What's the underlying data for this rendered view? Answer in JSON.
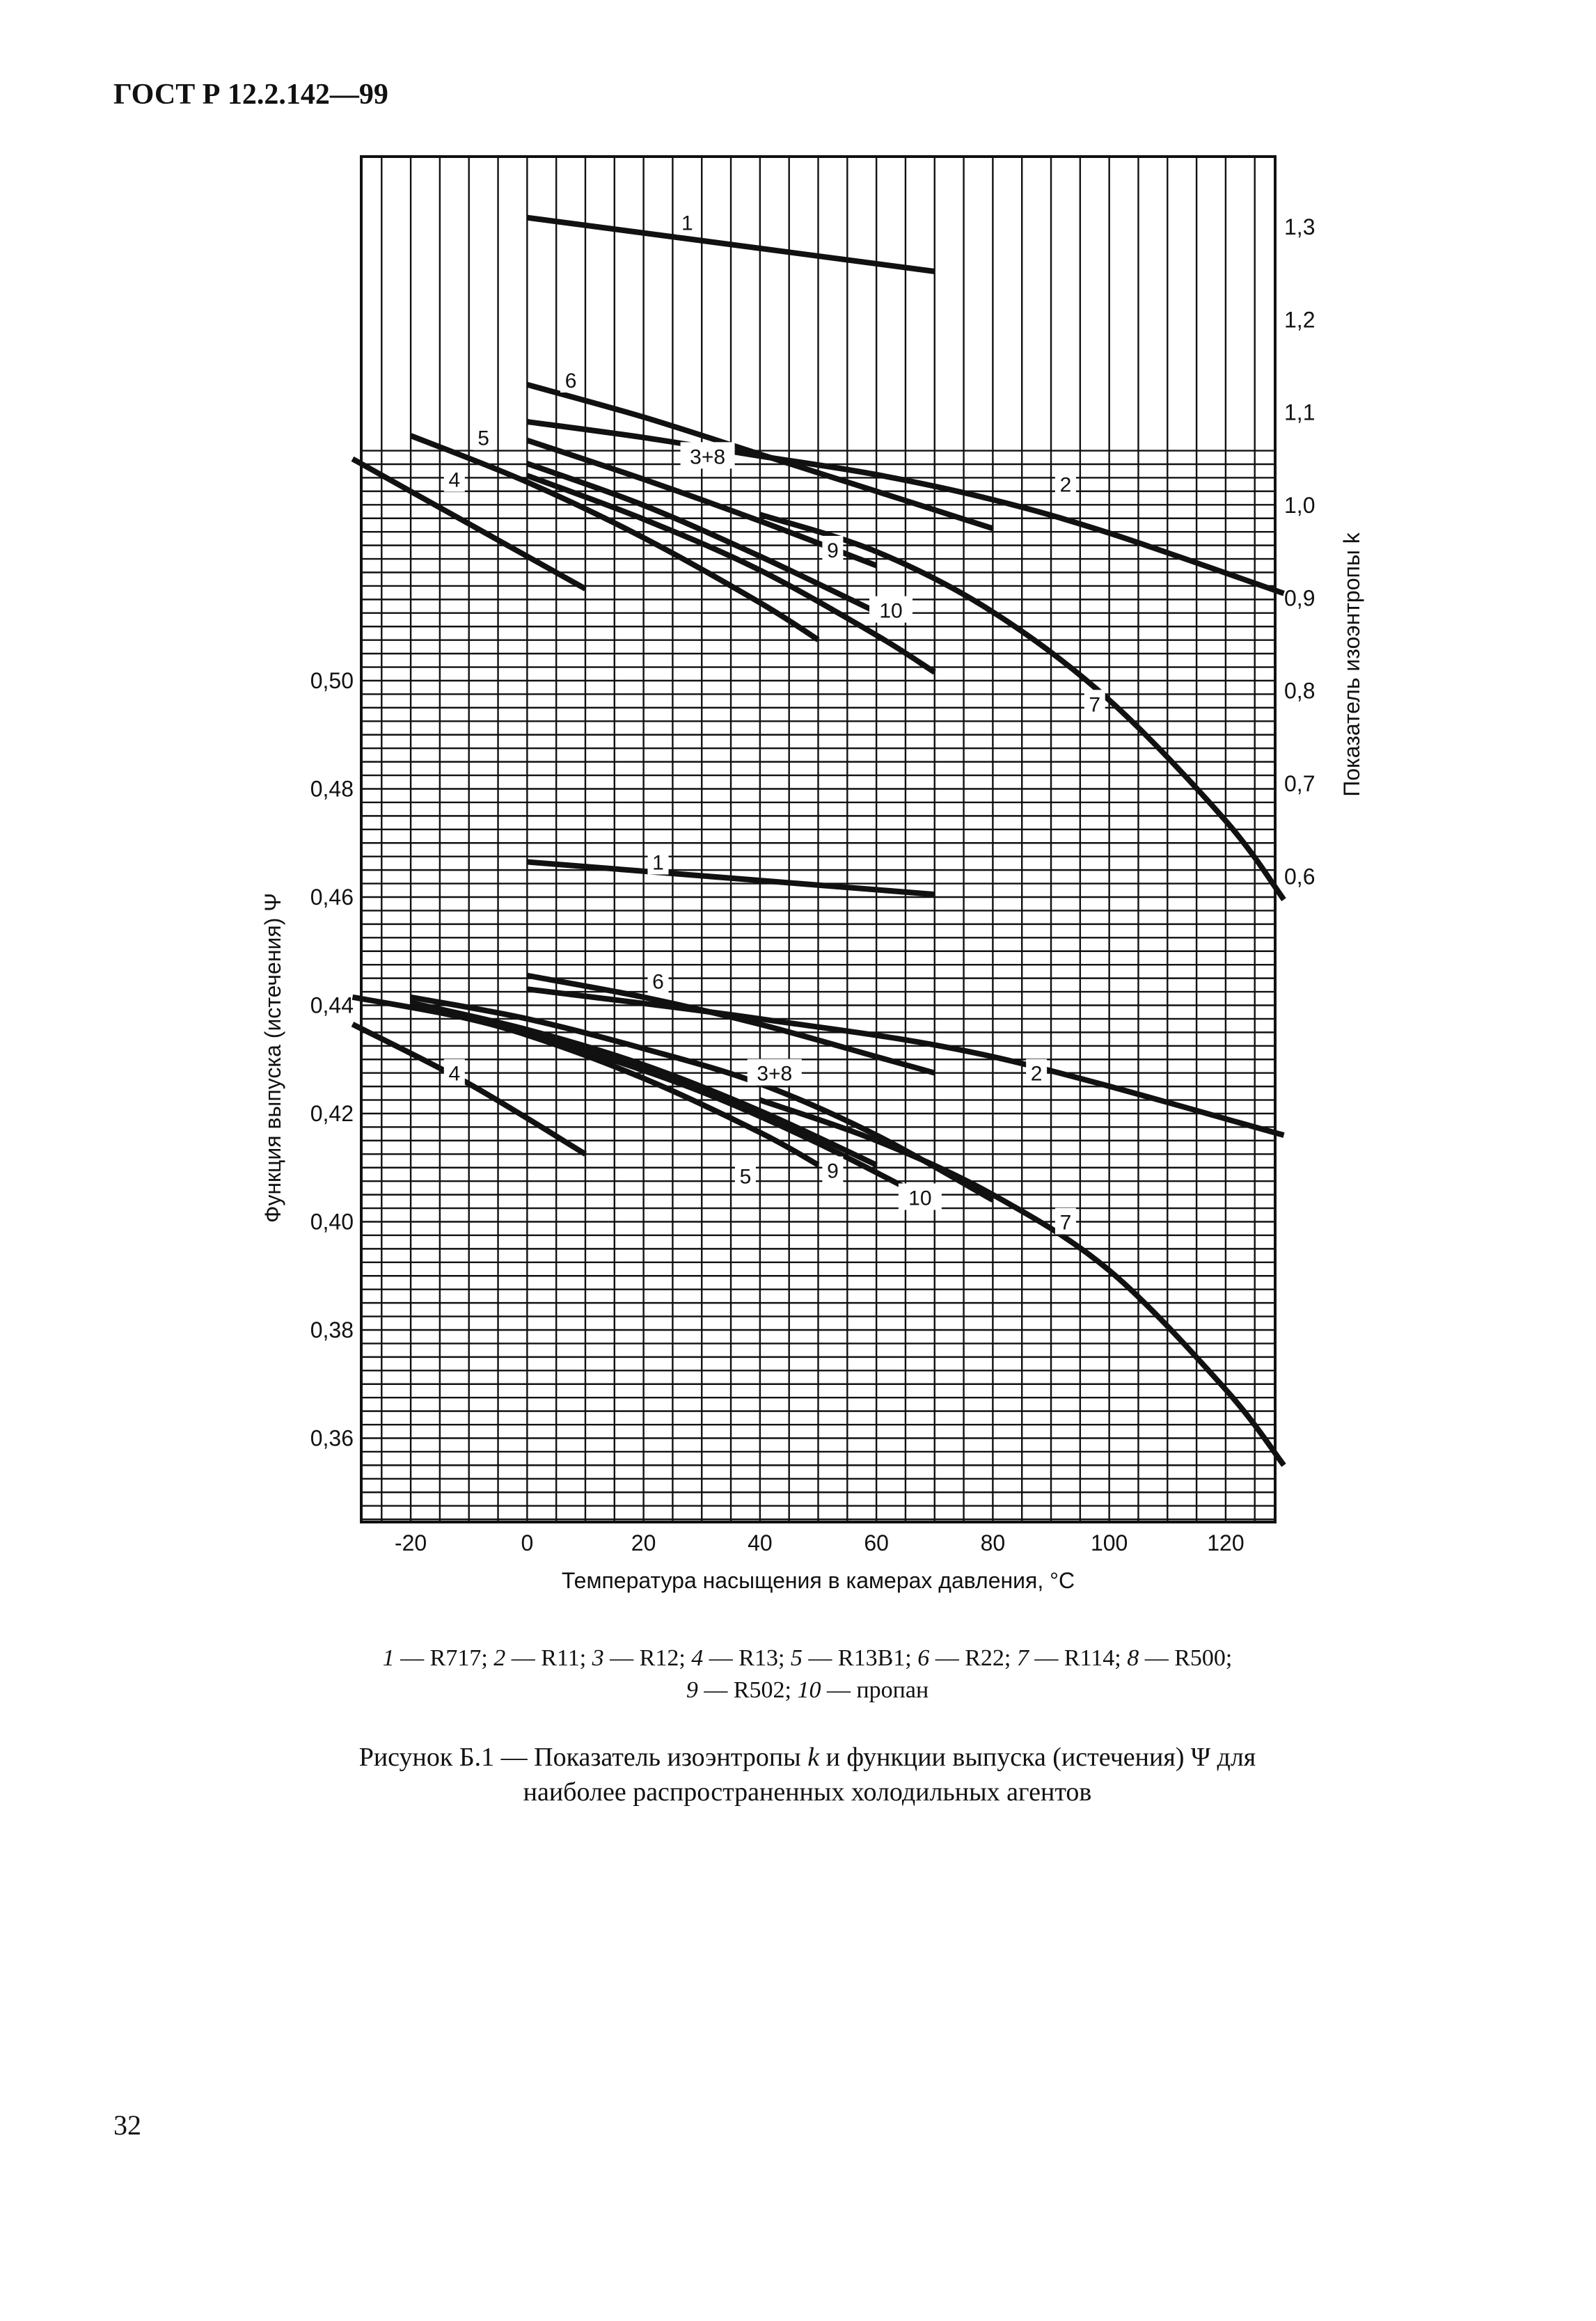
{
  "header": {
    "title": "ГОСТ Р 12.2.142—99"
  },
  "chart_data": {
    "type": "line",
    "xlabel": "Температура насыщения в камерах давления, °C",
    "x_ticks": [
      -20,
      0,
      20,
      40,
      60,
      80,
      100,
      120
    ],
    "xlim": [
      -28.5,
      128.5
    ],
    "right_axis": {
      "label": "Показатель изоэнтропы k",
      "ticks": [
        "1,3",
        "1,2",
        "1,1",
        "1,0",
        "0,9",
        "0,8",
        "0,7",
        "0,6"
      ],
      "tick_values": [
        1.3,
        1.2,
        1.1,
        1.0,
        0.9,
        0.8,
        0.7,
        0.6
      ]
    },
    "left_axis": {
      "label": "Функция выпуска (истечения) Ψ",
      "ticks": [
        "0,50",
        "0,48",
        "0,46",
        "0,44",
        "0,42",
        "0,40",
        "0,38",
        "0,36"
      ],
      "tick_values": [
        0.5,
        0.48,
        0.46,
        0.44,
        0.42,
        0.4,
        0.38,
        0.36
      ]
    },
    "k_series": [
      {
        "label": "1",
        "x": [
          0,
          70
        ],
        "y": [
          1.31,
          1.252
        ]
      },
      {
        "label": "6",
        "x": [
          0,
          20,
          40,
          60,
          80
        ],
        "y": [
          1.13,
          1.095,
          1.055,
          1.015,
          0.975
        ]
      },
      {
        "label": "2",
        "x": [
          0,
          20,
          40,
          60,
          80,
          100,
          130
        ],
        "y": [
          1.09,
          1.073,
          1.053,
          1.033,
          1.006,
          0.97,
          0.905
        ]
      },
      {
        "label": "3+8",
        "x": [
          0,
          20,
          40,
          60
        ],
        "y": [
          1.07,
          1.028,
          0.983,
          0.935
        ]
      },
      {
        "label": "7",
        "x": [
          40,
          60,
          80,
          100,
          120,
          130
        ],
        "y": [
          0.99,
          0.95,
          0.885,
          0.79,
          0.66,
          0.575
        ]
      },
      {
        "label": "9",
        "x": [
          0,
          20,
          40,
          60
        ],
        "y": [
          1.045,
          1.0,
          0.945,
          0.885
        ]
      },
      {
        "label": "10",
        "x": [
          0,
          20,
          40,
          60,
          70
        ],
        "y": [
          1.032,
          0.985,
          0.93,
          0.86,
          0.82
        ]
      },
      {
        "label": "5",
        "x": [
          -20,
          0,
          20,
          40,
          50
        ],
        "y": [
          1.075,
          1.025,
          0.965,
          0.895,
          0.855
        ]
      },
      {
        "label": "4",
        "x": [
          -30,
          -10,
          10
        ],
        "y": [
          1.05,
          0.98,
          0.91
        ]
      }
    ],
    "psi_series": [
      {
        "label": "1",
        "x": [
          0,
          70
        ],
        "y": [
          0.4665,
          0.4605
        ]
      },
      {
        "label": "6",
        "x": [
          0,
          20,
          40,
          60,
          70
        ],
        "y": [
          0.4455,
          0.4415,
          0.4365,
          0.4305,
          0.4275
        ]
      },
      {
        "label": "2",
        "x": [
          0,
          40,
          80,
          130
        ],
        "y": [
          0.443,
          0.4375,
          0.4305,
          0.416
        ]
      },
      {
        "label": "3+8",
        "x": [
          -20,
          0,
          20,
          40,
          60,
          80
        ],
        "y": [
          0.4415,
          0.4375,
          0.432,
          0.4255,
          0.416,
          0.404
        ]
      },
      {
        "label": "7",
        "x": [
          40,
          60,
          80,
          100,
          120,
          130
        ],
        "y": [
          0.4225,
          0.415,
          0.405,
          0.391,
          0.369,
          0.355
        ]
      },
      {
        "label": "10",
        "x": [
          -30,
          -10,
          10,
          30,
          50,
          70
        ],
        "y": [
          0.4415,
          0.4375,
          0.4315,
          0.424,
          0.4145,
          0.4035
        ]
      },
      {
        "label": "9",
        "x": [
          -20,
          0,
          20,
          40,
          60
        ],
        "y": [
          0.4405,
          0.4355,
          0.429,
          0.4205,
          0.4105
        ]
      },
      {
        "label": "5",
        "x": [
          -20,
          0,
          20,
          40,
          50
        ],
        "y": [
          0.4405,
          0.4345,
          0.4265,
          0.4165,
          0.4105
        ]
      },
      {
        "label": "4",
        "x": [
          -30,
          -10,
          10
        ],
        "y": [
          0.4365,
          0.4255,
          0.4125
        ]
      }
    ],
    "k_labels": [
      {
        "text": "1",
        "x": 27.5,
        "y": 1.305
      },
      {
        "text": "6",
        "x": 7.5,
        "y": 1.135
      },
      {
        "text": "5",
        "x": -7.5,
        "y": 1.073
      },
      {
        "text": "3+8",
        "x": 31,
        "y": 1.053
      },
      {
        "text": "4",
        "x": -12.5,
        "y": 1.028
      },
      {
        "text": "2",
        "x": 92.5,
        "y": 1.023
      },
      {
        "text": "9",
        "x": 52.5,
        "y": 0.952
      },
      {
        "text": "10",
        "x": 62.5,
        "y": 0.887
      },
      {
        "text": "7",
        "x": 97.5,
        "y": 0.786
      }
    ],
    "psi_labels": [
      {
        "text": "1",
        "x": 22.5,
        "y": 0.4665
      },
      {
        "text": "6",
        "x": 22.5,
        "y": 0.4445
      },
      {
        "text": "4",
        "x": -12.5,
        "y": 0.4275
      },
      {
        "text": "3+8",
        "x": 42.5,
        "y": 0.4275
      },
      {
        "text": "2",
        "x": 87.5,
        "y": 0.4275
      },
      {
        "text": "9",
        "x": 52.5,
        "y": 0.4095
      },
      {
        "text": "5",
        "x": 37.5,
        "y": 0.4085
      },
      {
        "text": "10",
        "x": 67.5,
        "y": 0.4045
      },
      {
        "text": "7",
        "x": 92.5,
        "y": 0.4
      }
    ]
  },
  "legend": {
    "line1": [
      {
        "n": "1",
        "t": " — R717; "
      },
      {
        "n": "2",
        "t": " — R11; "
      },
      {
        "n": "3",
        "t": " — R12; "
      },
      {
        "n": "4",
        "t": " — R13; "
      },
      {
        "n": "5",
        "t": " — R13B1; "
      },
      {
        "n": "6",
        "t": " — R22; "
      },
      {
        "n": "7",
        "t": " — R114; "
      },
      {
        "n": "8",
        "t": " — R500;"
      }
    ],
    "line2": [
      {
        "n": "9",
        "t": " — R502; "
      },
      {
        "n": "10",
        "t": " — пропан"
      }
    ]
  },
  "caption": {
    "line1_a": "Рисунок Б.1 — Показатель изоэнтропы ",
    "line1_k": "k",
    "line1_b": " и функции выпуска (истечения) Ψ для",
    "line2": "наиболее распространенных холодильных агентов"
  },
  "page_number": "32"
}
